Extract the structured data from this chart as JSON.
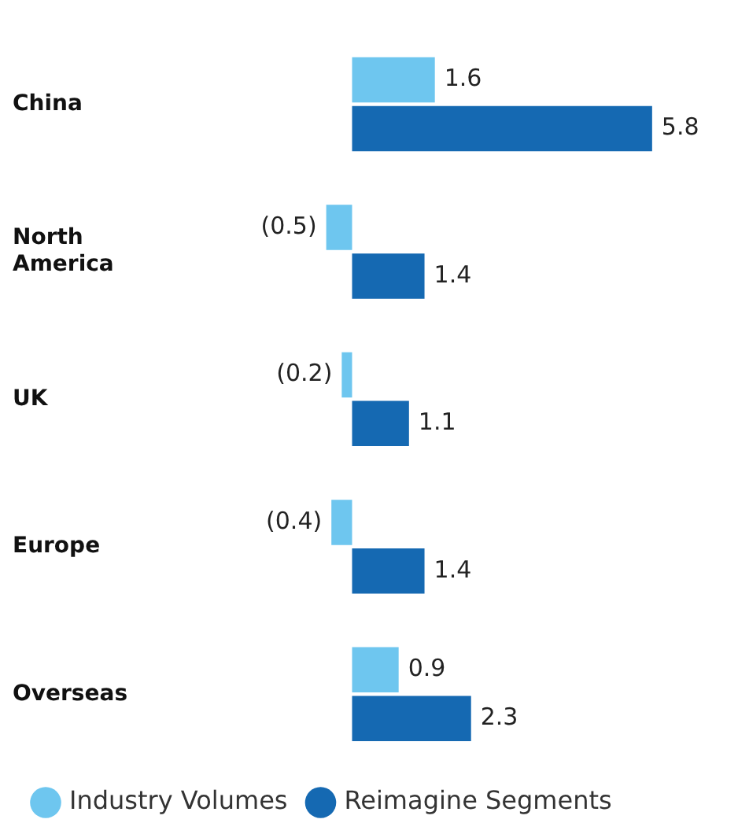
{
  "chart_data": {
    "type": "bar",
    "orientation": "horizontal",
    "legend": "bottom left",
    "tick_labels": "y",
    "categories": [
      "China",
      "North America",
      "UK",
      "Europe",
      "Overseas"
    ],
    "series": [
      {
        "name": "Industry Volumes",
        "color": "#6ec6ef",
        "values": [
          1.6,
          -0.5,
          -0.2,
          -0.4,
          0.9
        ],
        "value_labels": [
          "1.6",
          "(0.5)",
          "(0.2)",
          "(0.4)",
          "0.9"
        ]
      },
      {
        "name": "Reimagine Segments",
        "color": "#1569b2",
        "values": [
          5.8,
          1.4,
          1.1,
          1.4,
          2.3
        ],
        "value_labels": [
          "5.8",
          "1.4",
          "1.1",
          "1.4",
          "2.3"
        ]
      }
    ]
  }
}
